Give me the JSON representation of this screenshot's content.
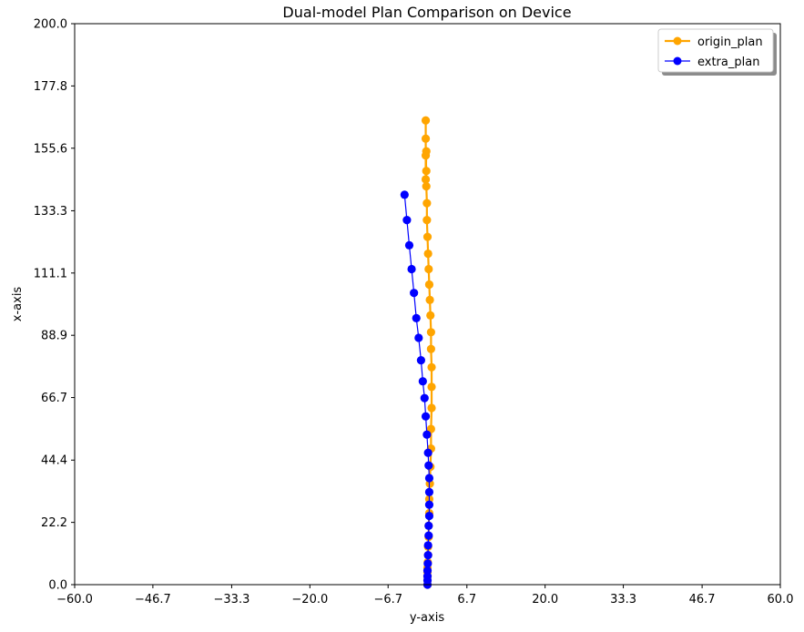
{
  "chart_data": {
    "type": "line",
    "title": "Dual-model Plan Comparison on Device",
    "xlabel": "y-axis",
    "ylabel": "x-axis",
    "xlim": [
      -60.0,
      60.0
    ],
    "ylim": [
      0.0,
      200.0
    ],
    "x_ticks": [
      "−60.0",
      "−46.7",
      "−33.3",
      "−20.0",
      "−6.7",
      "6.7",
      "20.0",
      "33.3",
      "46.7",
      "60.0"
    ],
    "y_ticks": [
      "0.0",
      "22.2",
      "44.4",
      "66.7",
      "88.9",
      "111.1",
      "133.3",
      "155.6",
      "177.8",
      "200.0"
    ],
    "x_tick_values": [
      -60.0,
      -46.7,
      -33.3,
      -20.0,
      -6.7,
      6.7,
      20.0,
      33.3,
      46.7,
      60.0
    ],
    "y_tick_values": [
      0.0,
      22.2,
      44.4,
      66.7,
      88.9,
      111.1,
      133.3,
      155.6,
      177.8,
      200.0
    ],
    "grid": false,
    "legend_position": "top-right",
    "series": [
      {
        "name": "origin_plan",
        "color": "#ffa500",
        "marker": "circle",
        "x": [
          0.0,
          0.0,
          0.0,
          0.0,
          0.0,
          0.05,
          0.1,
          0.1,
          0.2,
          0.2,
          0.3,
          0.3,
          0.4,
          0.5,
          0.6,
          0.6,
          0.7,
          0.7,
          0.7,
          0.6,
          0.6,
          0.5,
          0.4,
          0.3,
          0.2,
          0.1,
          0.0,
          -0.1,
          -0.1,
          -0.2,
          -0.2,
          -0.3,
          -0.3,
          -0.3,
          -0.3,
          -0.2
        ],
        "y": [
          0.0,
          1.5,
          3.0,
          4.5,
          6.0,
          8.0,
          10.5,
          13.5,
          17.0,
          21.0,
          25.5,
          30.5,
          36.0,
          42.0,
          48.5,
          55.5,
          63.0,
          70.5,
          77.5,
          84.0,
          90.0,
          96.0,
          101.5,
          107.0,
          112.5,
          118.0,
          124.0,
          130.0,
          136.0,
          142.0,
          147.5,
          153.0,
          159.0,
          165.5,
          144.5,
          154.5
        ]
      },
      {
        "name": "extra_plan",
        "color": "#0000ff",
        "marker": "circle",
        "x": [
          0.0,
          0.0,
          0.0,
          0.0,
          0.05,
          0.1,
          0.1,
          0.2,
          0.2,
          0.3,
          0.3,
          0.3,
          0.3,
          0.2,
          0.1,
          -0.1,
          -0.3,
          -0.5,
          -0.8,
          -1.1,
          -1.5,
          -1.9,
          -2.3,
          -2.7,
          -3.1,
          -3.5,
          -3.9
        ],
        "y": [
          0.0,
          1.5,
          3.0,
          5.0,
          7.5,
          10.5,
          14.0,
          17.5,
          21.0,
          24.5,
          28.5,
          33.0,
          38.0,
          42.5,
          47.0,
          53.5,
          60.0,
          66.5,
          72.5,
          80.0,
          88.0,
          95.0,
          104.0,
          112.5,
          121.0,
          130.0,
          139.0
        ]
      }
    ]
  }
}
